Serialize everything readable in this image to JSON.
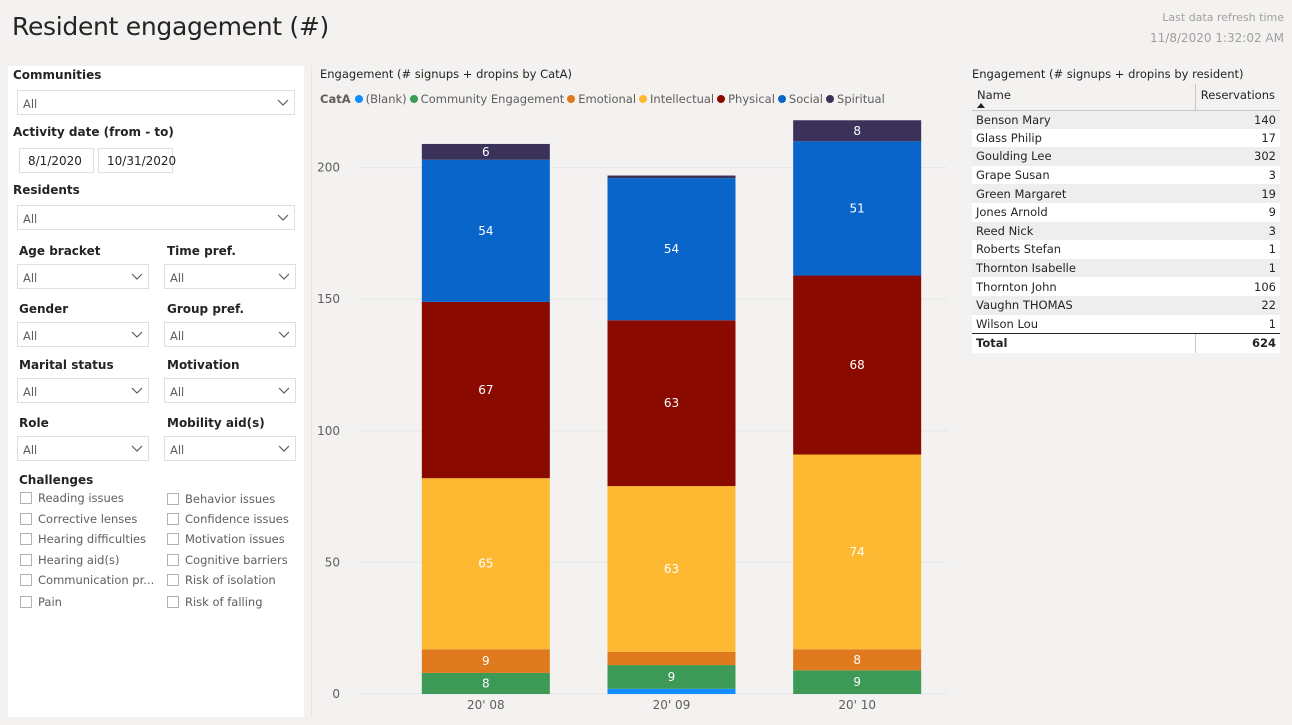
{
  "header": {
    "title": "Resident engagement (#)",
    "refresh_label": "Last data refresh time",
    "refresh_time": "11/8/2020 1:32:02 AM"
  },
  "filters": {
    "communities": {
      "label": "Communities",
      "value": "All"
    },
    "activity_date": {
      "label": "Activity date (from - to)",
      "from": "8/1/2020",
      "to": "10/31/2020"
    },
    "residents": {
      "label": "Residents",
      "value": "All"
    },
    "age_bracket": {
      "label": "Age bracket",
      "value": "All"
    },
    "time_pref": {
      "label": "Time pref.",
      "value": "All"
    },
    "gender": {
      "label": "Gender",
      "value": "All"
    },
    "group_pref": {
      "label": "Group pref.",
      "value": "All"
    },
    "marital_status": {
      "label": "Marital status",
      "value": "All"
    },
    "motivation": {
      "label": "Motivation",
      "value": "All"
    },
    "role": {
      "label": "Role",
      "value": "All"
    },
    "mobility_aids": {
      "label": "Mobility aid(s)",
      "value": "All"
    },
    "challenges": {
      "label": "Challenges",
      "left": [
        "Reading issues",
        "Corrective lenses",
        "Hearing difficulties",
        "Hearing aid(s)",
        "Communication pr...",
        "Pain"
      ],
      "right": [
        "Behavior issues",
        "Confidence issues",
        "Motivation issues",
        "Cognitive barriers",
        "Risk of isolation",
        "Risk of falling"
      ]
    }
  },
  "colors": {
    "blank": "#118dff",
    "community": "#3d9956",
    "emotional": "#e07a1e",
    "intellectual": "#fcb931",
    "physical": "#8b0a00",
    "social": "#0a65cb",
    "spiritual": "#3b3259"
  },
  "chart_data": {
    "type": "bar",
    "stacked": true,
    "title": "Engagement (# signups + dropins by CatA)",
    "legend_title": "CatA",
    "legend_position": "top-left",
    "categories": [
      "20' 08",
      "20' 09",
      "20' 10"
    ],
    "ylim": [
      0,
      220
    ],
    "yticks": [
      0,
      50,
      100,
      150,
      200
    ],
    "gridlines": true,
    "series": [
      {
        "name": "(Blank)",
        "color_key": "blank",
        "values": [
          0,
          2,
          0
        ],
        "labels": [
          "",
          "",
          ""
        ]
      },
      {
        "name": "Community Engagement",
        "color_key": "community",
        "values": [
          8,
          9,
          9
        ],
        "labels": [
          "8",
          "9",
          "9"
        ]
      },
      {
        "name": "Emotional",
        "color_key": "emotional",
        "values": [
          9,
          5,
          8
        ],
        "labels": [
          "9",
          "",
          "8"
        ]
      },
      {
        "name": "Intellectual",
        "color_key": "intellectual",
        "values": [
          65,
          63,
          74
        ],
        "labels": [
          "65",
          "63",
          "74"
        ]
      },
      {
        "name": "Physical",
        "color_key": "physical",
        "values": [
          67,
          63,
          68
        ],
        "labels": [
          "67",
          "63",
          "68"
        ]
      },
      {
        "name": "Social",
        "color_key": "social",
        "values": [
          54,
          54,
          51
        ],
        "labels": [
          "54",
          "54",
          "51"
        ]
      },
      {
        "name": "Spiritual",
        "color_key": "spiritual",
        "values": [
          6,
          1,
          8
        ],
        "labels": [
          "6",
          "",
          "8"
        ]
      }
    ]
  },
  "table": {
    "title": "Engagement (# signups + dropins by resident)",
    "columns": [
      "Name",
      "Reservations"
    ],
    "rows": [
      {
        "name": "Benson Mary",
        "value": "140"
      },
      {
        "name": "Glass Philip",
        "value": "17"
      },
      {
        "name": "Goulding Lee",
        "value": "302"
      },
      {
        "name": "Grape Susan",
        "value": "3"
      },
      {
        "name": "Green Margaret",
        "value": "19"
      },
      {
        "name": "Jones Arnold",
        "value": "9"
      },
      {
        "name": "Reed Nick",
        "value": "3"
      },
      {
        "name": "Roberts Stefan",
        "value": "1"
      },
      {
        "name": "Thornton Isabelle",
        "value": "1"
      },
      {
        "name": "Thornton John",
        "value": "106"
      },
      {
        "name": "Vaughn THOMAS",
        "value": "22"
      },
      {
        "name": "Wilson Lou",
        "value": "1"
      }
    ],
    "total_label": "Total",
    "total_value": "624"
  }
}
